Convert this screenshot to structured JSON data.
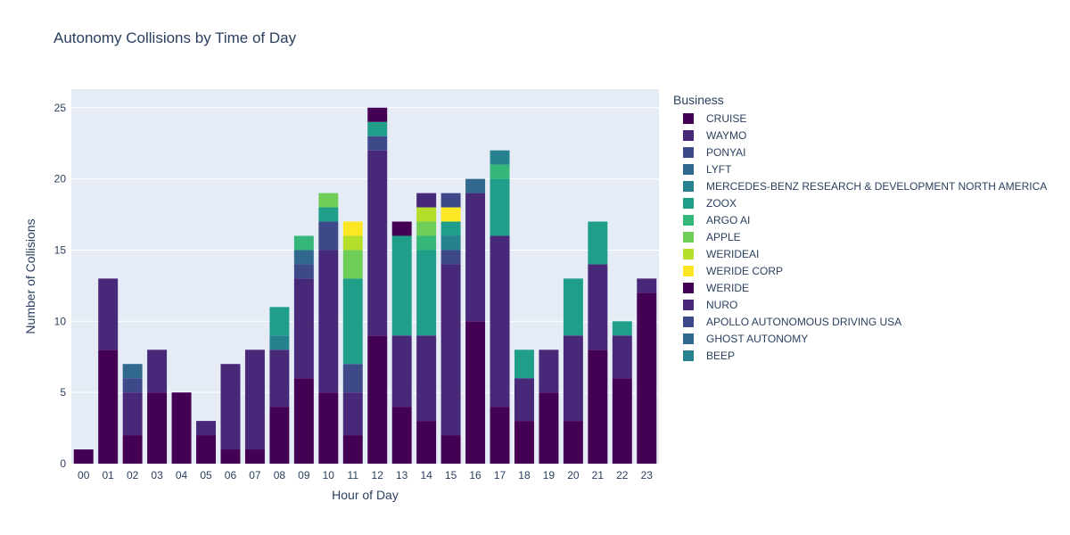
{
  "chart_data": {
    "type": "bar",
    "barmode": "stack",
    "title": "Autonomy Collisions by Time of Day",
    "xlabel": "Hour of Day",
    "ylabel": "Number of Collisions",
    "ylim": [
      0,
      26.3
    ],
    "yticks": [
      0,
      5,
      10,
      15,
      20,
      25
    ],
    "grid": true,
    "legend_title": "Business",
    "legend_position": "right",
    "categories": [
      "00",
      "01",
      "02",
      "03",
      "04",
      "05",
      "06",
      "07",
      "08",
      "09",
      "10",
      "11",
      "12",
      "13",
      "14",
      "15",
      "16",
      "17",
      "18",
      "19",
      "20",
      "21",
      "22",
      "23"
    ],
    "series": [
      {
        "name": "CRUISE",
        "color": "#440154",
        "values": [
          1,
          8,
          2,
          5,
          5,
          2,
          1,
          1,
          4,
          6,
          5,
          2,
          9,
          4,
          3,
          2,
          10,
          4,
          3,
          5,
          3,
          8,
          6,
          12
        ]
      },
      {
        "name": "WAYMO",
        "color": "#482878",
        "values": [
          0,
          5,
          3,
          3,
          0,
          1,
          6,
          7,
          4,
          7,
          10,
          3,
          13,
          5,
          6,
          12,
          9,
          12,
          3,
          3,
          6,
          6,
          3,
          1
        ]
      },
      {
        "name": "PONYAI",
        "color": "#3e4989",
        "values": [
          0,
          0,
          1,
          0,
          0,
          0,
          0,
          0,
          0,
          1,
          2,
          2,
          1,
          0,
          0,
          1,
          0,
          0,
          0,
          0,
          0,
          0,
          0,
          0
        ]
      },
      {
        "name": "LYFT",
        "color": "#31688e",
        "values": [
          0,
          0,
          1,
          0,
          0,
          0,
          0,
          0,
          0,
          1,
          0,
          0,
          0,
          0,
          0,
          0,
          1,
          0,
          0,
          0,
          0,
          0,
          0,
          0
        ]
      },
      {
        "name": "MERCEDES-BENZ RESEARCH & DEVELOPMENT NORTH AMERICA",
        "color": "#26828e",
        "values": [
          0,
          0,
          0,
          0,
          0,
          0,
          0,
          0,
          1,
          0,
          0,
          0,
          0,
          0,
          0,
          1,
          0,
          0,
          0,
          0,
          0,
          0,
          0,
          0
        ]
      },
      {
        "name": "ZOOX",
        "color": "#1f9e89",
        "values": [
          0,
          0,
          0,
          0,
          0,
          0,
          0,
          0,
          2,
          0,
          1,
          6,
          1,
          7,
          6,
          1,
          0,
          4,
          2,
          0,
          4,
          3,
          1,
          0
        ]
      },
      {
        "name": "ARGO AI",
        "color": "#35b779",
        "values": [
          0,
          0,
          0,
          0,
          0,
          0,
          0,
          0,
          0,
          1,
          0,
          0,
          0,
          0,
          1,
          0,
          0,
          1,
          0,
          0,
          0,
          0,
          0,
          0
        ]
      },
      {
        "name": "APPLE",
        "color": "#6ece58",
        "values": [
          0,
          0,
          0,
          0,
          0,
          0,
          0,
          0,
          0,
          0,
          1,
          2,
          0,
          0,
          1,
          0,
          0,
          0,
          0,
          0,
          0,
          0,
          0,
          0
        ]
      },
      {
        "name": "WERIDEAI",
        "color": "#b5de2b",
        "values": [
          0,
          0,
          0,
          0,
          0,
          0,
          0,
          0,
          0,
          0,
          0,
          1,
          0,
          0,
          1,
          0,
          0,
          0,
          0,
          0,
          0,
          0,
          0,
          0
        ]
      },
      {
        "name": "WERIDE CORP",
        "color": "#fde725",
        "values": [
          0,
          0,
          0,
          0,
          0,
          0,
          0,
          0,
          0,
          0,
          0,
          1,
          0,
          0,
          0,
          1,
          0,
          0,
          0,
          0,
          0,
          0,
          0,
          0
        ]
      },
      {
        "name": "WERIDE",
        "color": "#440154",
        "values": [
          0,
          0,
          0,
          0,
          0,
          0,
          0,
          0,
          0,
          0,
          0,
          0,
          1,
          1,
          0,
          0,
          0,
          0,
          0,
          0,
          0,
          0,
          0,
          0
        ]
      },
      {
        "name": "NURO",
        "color": "#482878",
        "values": [
          0,
          0,
          0,
          0,
          0,
          0,
          0,
          0,
          0,
          0,
          0,
          0,
          0,
          0,
          1,
          0,
          0,
          0,
          0,
          0,
          0,
          0,
          0,
          0
        ]
      },
      {
        "name": "APOLLO AUTONOMOUS DRIVING USA",
        "color": "#3e4989",
        "values": [
          0,
          0,
          0,
          0,
          0,
          0,
          0,
          0,
          0,
          0,
          0,
          0,
          0,
          0,
          0,
          1,
          0,
          0,
          0,
          0,
          0,
          0,
          0,
          0
        ]
      },
      {
        "name": "GHOST AUTONOMY",
        "color": "#31688e",
        "values": [
          0,
          0,
          0,
          0,
          0,
          0,
          0,
          0,
          0,
          0,
          0,
          0,
          0,
          0,
          0,
          0,
          0,
          0,
          0,
          0,
          0,
          0,
          0,
          0
        ]
      },
      {
        "name": "BEEP",
        "color": "#26828e",
        "values": [
          0,
          0,
          0,
          0,
          0,
          0,
          0,
          0,
          0,
          0,
          0,
          0,
          0,
          0,
          0,
          0,
          0,
          1,
          0,
          0,
          0,
          0,
          0,
          0
        ]
      }
    ]
  }
}
